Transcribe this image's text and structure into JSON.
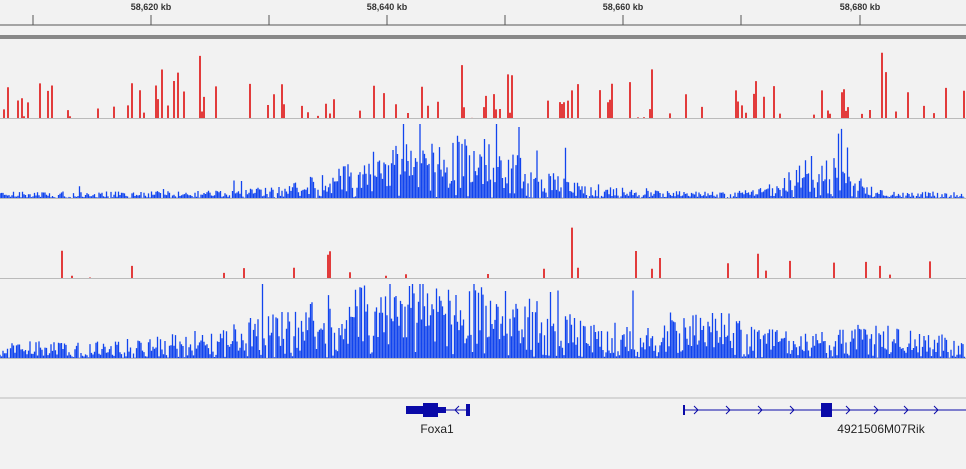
{
  "ruler": {
    "ticks": [
      "58,620 kb",
      "58,640 kb",
      "58,660 kb",
      "58,680 kb"
    ]
  },
  "tracks": [
    {
      "name": "track-1",
      "color": "#dd0000",
      "type": "sparse"
    },
    {
      "name": "track-2",
      "color": "#1144ee",
      "type": "dense"
    },
    {
      "name": "track-3",
      "color": "#dd0000",
      "type": "sparse"
    },
    {
      "name": "track-4",
      "color": "#1144ee",
      "type": "dense"
    }
  ],
  "genes": [
    {
      "name": "Foxa1",
      "strand": "-"
    },
    {
      "name": "4921506M07Rik",
      "strand": "+"
    }
  ],
  "colors": {
    "gene": "#0a0aa8",
    "background": "#f2f2f2",
    "divider": "#bbbbbb"
  }
}
